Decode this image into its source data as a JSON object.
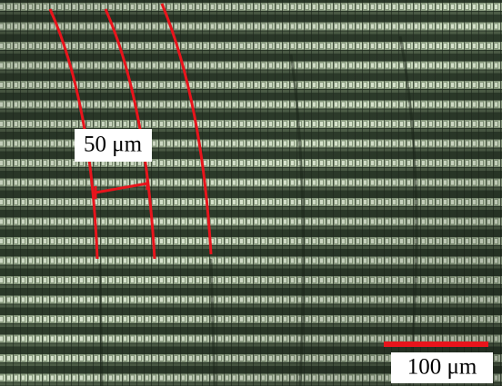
{
  "annotations": {
    "measure_label": "50 μm",
    "scale_bar_label": "100 μm"
  }
}
